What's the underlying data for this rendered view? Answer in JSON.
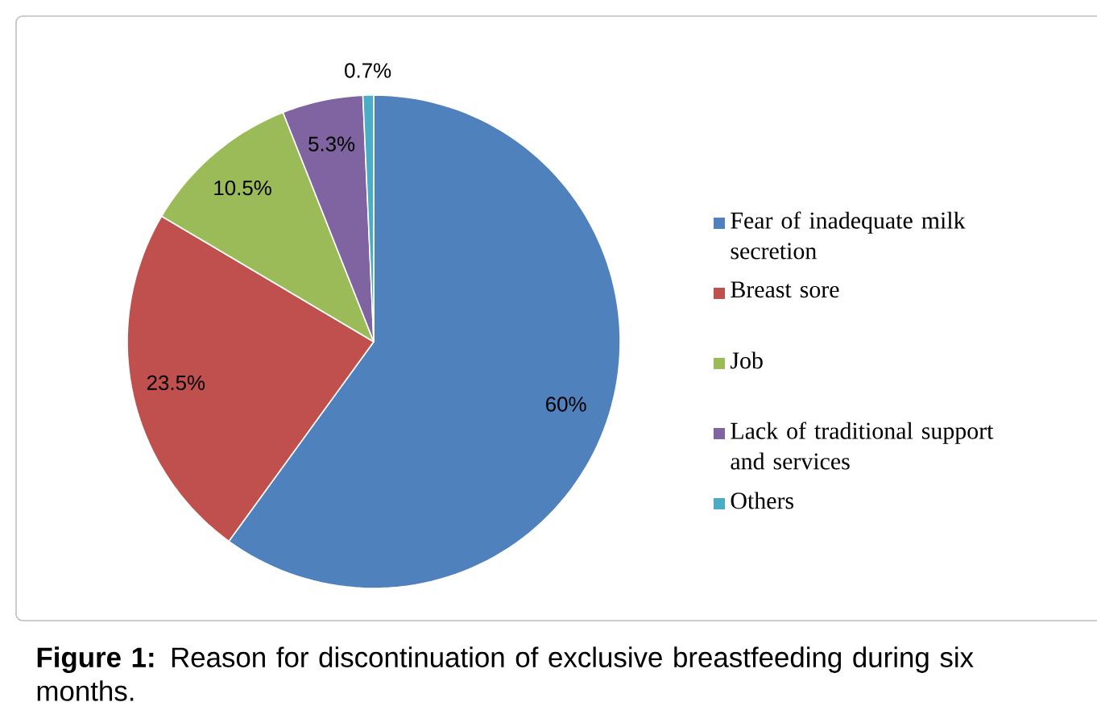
{
  "chart_data": {
    "type": "pie",
    "title": "**Figure 1:** Reason for discontinuation of exclusive breastfeeding during six months.",
    "categories": [
      "Fear of inadequate milk secretion",
      "Breast sore",
      "Job",
      "Lack of traditional support and services",
      "Others"
    ],
    "values": [
      60,
      23.5,
      10.5,
      5.3,
      0.7
    ],
    "value_labels": [
      "60%",
      "23.5%",
      "10.5%",
      "5.3%",
      "0.7%"
    ],
    "colors": [
      "#4f81bd",
      "#c0504d",
      "#9bbb59",
      "#8064a2",
      "#4bacc6"
    ],
    "legend": "right"
  }
}
